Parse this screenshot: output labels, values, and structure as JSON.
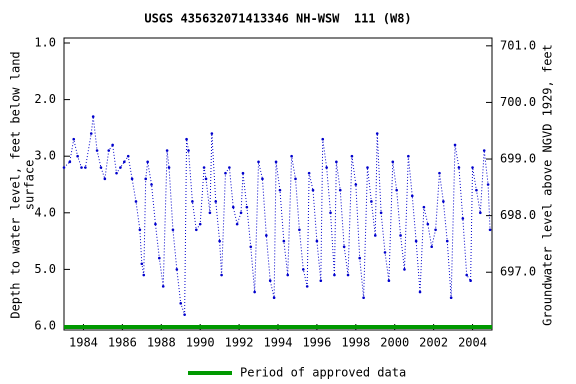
{
  "chart_data": {
    "type": "line",
    "title": "USGS 435632071413346 NH-WSW  111 (W8)",
    "ylabel": [
      "Depth to water level, feet below land",
      "surface"
    ],
    "y2label": "Groundwater level above NGVD 1929, feet",
    "xlim": [
      1983,
      2005
    ],
    "xticks": [
      1984,
      1986,
      1988,
      1990,
      1992,
      1994,
      1996,
      1998,
      2000,
      2002,
      2004
    ],
    "ylim": [
      1,
      6
    ],
    "yticks": [
      {
        "value": 1,
        "label": "1.0"
      },
      {
        "value": 2,
        "label": "2.0"
      },
      {
        "value": 3,
        "label": "3.0"
      },
      {
        "value": 4,
        "label": "4.0"
      },
      {
        "value": 5,
        "label": "5.0"
      },
      {
        "value": 6,
        "label": "6.0"
      }
    ],
    "y2lim": [
      701.05,
      696.05
    ],
    "y2ticks": [
      {
        "value": 701,
        "label": "701.0"
      },
      {
        "value": 700,
        "label": "700.0"
      },
      {
        "value": 699,
        "label": "699.0"
      },
      {
        "value": 698,
        "label": "698.0"
      },
      {
        "value": 697,
        "label": "697.0"
      }
    ],
    "inverted_y": true,
    "series": [
      {
        "name": "Depth to water level",
        "color": "#0000cc",
        "x": [
          1983.0,
          1983.3,
          1983.5,
          1983.7,
          1983.9,
          1984.1,
          1984.4,
          1984.5,
          1984.7,
          1984.9,
          1985.1,
          1985.3,
          1985.5,
          1985.7,
          1985.9,
          1986.1,
          1986.3,
          1986.5,
          1986.7,
          1986.9,
          1987.0,
          1987.1,
          1987.2,
          1987.3,
          1987.5,
          1987.7,
          1987.9,
          1988.1,
          1988.3,
          1988.4,
          1988.6,
          1988.8,
          1989.0,
          1989.2,
          1989.3,
          1989.4,
          1989.6,
          1989.8,
          1990.0,
          1990.2,
          1990.3,
          1990.5,
          1990.6,
          1990.8,
          1991.0,
          1991.1,
          1991.3,
          1991.5,
          1991.7,
          1991.9,
          1992.1,
          1992.2,
          1992.4,
          1992.6,
          1992.8,
          1993.0,
          1993.2,
          1993.4,
          1993.6,
          1993.8,
          1993.9,
          1994.1,
          1994.3,
          1994.5,
          1994.7,
          1994.9,
          1995.1,
          1995.3,
          1995.5,
          1995.6,
          1995.8,
          1996.0,
          1996.2,
          1996.3,
          1996.5,
          1996.7,
          1996.9,
          1997.0,
          1997.2,
          1997.4,
          1997.6,
          1997.8,
          1998.0,
          1998.2,
          1998.4,
          1998.6,
          1998.8,
          1999.0,
          1999.1,
          1999.3,
          1999.5,
          1999.7,
          1999.9,
          2000.1,
          2000.3,
          2000.5,
          2000.7,
          2000.9,
          2001.1,
          2001.3,
          2001.5,
          2001.7,
          2001.9,
          2002.1,
          2002.3,
          2002.5,
          2002.7,
          2002.9,
          2003.1,
          2003.3,
          2003.5,
          2003.7,
          2003.9,
          2004.0,
          2004.2,
          2004.4,
          2004.6,
          2004.8,
          2004.9
        ],
        "values": [
          3.2,
          3.1,
          2.7,
          3.0,
          3.2,
          3.2,
          2.6,
          2.3,
          2.9,
          3.2,
          3.4,
          2.9,
          2.8,
          3.3,
          3.2,
          3.1,
          3.0,
          3.4,
          3.8,
          4.3,
          4.9,
          5.1,
          3.4,
          3.1,
          3.5,
          4.2,
          4.8,
          5.3,
          2.9,
          3.2,
          4.3,
          5.0,
          5.6,
          5.8,
          2.7,
          2.9,
          3.8,
          4.3,
          4.2,
          3.2,
          3.4,
          4.0,
          2.6,
          3.8,
          4.5,
          5.1,
          3.3,
          3.2,
          3.9,
          4.2,
          4.0,
          3.3,
          3.9,
          4.6,
          5.4,
          3.1,
          3.4,
          4.4,
          5.2,
          5.5,
          3.1,
          3.6,
          4.5,
          5.1,
          3.0,
          3.4,
          4.3,
          5.0,
          5.3,
          3.3,
          3.6,
          4.5,
          5.2,
          2.7,
          3.2,
          4.0,
          5.1,
          3.1,
          3.6,
          4.6,
          5.1,
          3.0,
          3.5,
          4.8,
          5.5,
          3.2,
          3.8,
          4.4,
          2.6,
          4.0,
          4.7,
          5.2,
          3.1,
          3.6,
          4.4,
          5.0,
          3.0,
          3.7,
          4.5,
          5.4,
          3.9,
          4.2,
          4.6,
          4.3,
          3.3,
          3.8,
          4.5,
          5.5,
          2.8,
          3.2,
          4.1,
          5.1,
          5.2,
          3.2,
          3.6,
          4.0,
          2.9,
          3.5,
          4.3
        ]
      }
    ],
    "approved": {
      "name": "Period of approved data",
      "color": "#009900",
      "x": [
        1983,
        2005
      ]
    }
  }
}
